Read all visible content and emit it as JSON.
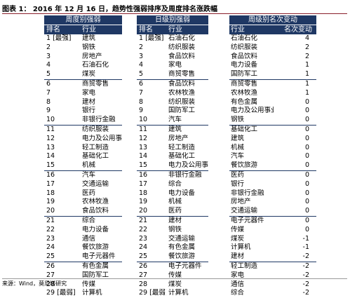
{
  "title": "图表 1： 2016 年 12 月 16 日，趋势性强弱排序及周度排名涨跌幅",
  "source": "来源：Wind，莫尼塔研究",
  "table_weekly": {
    "title": "周度别强弱",
    "headers": [
      "排名",
      "行业"
    ],
    "rows": [
      [
        "1 [最强]",
        "建筑"
      ],
      [
        "2",
        "钢铁"
      ],
      [
        "3",
        "房地产"
      ],
      [
        "4",
        "石油石化"
      ],
      [
        "5",
        "煤炭"
      ],
      [
        "6",
        "商贸零售"
      ],
      [
        "7",
        "家电"
      ],
      [
        "8",
        "建材"
      ],
      [
        "9",
        "银行"
      ],
      [
        "10",
        "非银行金融"
      ],
      [
        "11",
        "纺织服装"
      ],
      [
        "12",
        "电力及公用事业"
      ],
      [
        "13",
        "轻工制造"
      ],
      [
        "14",
        "基础化工"
      ],
      [
        "15",
        "机械"
      ],
      [
        "16",
        "汽车"
      ],
      [
        "17",
        "交通运输"
      ],
      [
        "18",
        "医药"
      ],
      [
        "19",
        "农林牧渔"
      ],
      [
        "20",
        "食品饮料"
      ],
      [
        "21",
        "综合"
      ],
      [
        "22",
        "电力设备"
      ],
      [
        "23",
        "通信"
      ],
      [
        "24",
        "餐饮旅游"
      ],
      [
        "25",
        "电子元器件"
      ],
      [
        "26",
        "有色金属"
      ],
      [
        "27",
        "国防军工"
      ],
      [
        "28",
        "传媒"
      ],
      [
        "29 [最弱]",
        "计算机"
      ]
    ]
  },
  "table_daily": {
    "title": "日级别强弱",
    "headers": [
      "排名",
      "行业"
    ],
    "rows": [
      [
        "1 [最强]",
        "石油石化"
      ],
      [
        "2",
        "纺织服装"
      ],
      [
        "3",
        "食品饮料"
      ],
      [
        "4",
        "家电"
      ],
      [
        "5",
        "商贸零售"
      ],
      [
        "6",
        "食品饮料"
      ],
      [
        "7",
        "农林牧渔"
      ],
      [
        "8",
        "纺织服装"
      ],
      [
        "9",
        "国防军工"
      ],
      [
        "10",
        "汽车"
      ],
      [
        "11",
        "建筑"
      ],
      [
        "12",
        "房地产"
      ],
      [
        "13",
        "轻工制造"
      ],
      [
        "14",
        "基础化工"
      ],
      [
        "15",
        "电力及公用事业"
      ],
      [
        "16",
        "非银行金融"
      ],
      [
        "17",
        "综合"
      ],
      [
        "18",
        "电力设备"
      ],
      [
        "19",
        "机械"
      ],
      [
        "20",
        "医药"
      ],
      [
        "21",
        "建材"
      ],
      [
        "22",
        "钢铁"
      ],
      [
        "23",
        "交通运输"
      ],
      [
        "24",
        "有色金属"
      ],
      [
        "25",
        "餐饮旅游"
      ],
      [
        "26",
        "电子元器件"
      ],
      [
        "27",
        "传媒"
      ],
      [
        "28",
        "煤炭"
      ],
      [
        "29 [最弱]",
        "计算机"
      ]
    ]
  },
  "table_change": {
    "title": "周级别名次变动",
    "headers": [
      "行业",
      "名次变动"
    ],
    "rows": [
      [
        "石油石化",
        "4"
      ],
      [
        "纺织服装",
        "2"
      ],
      [
        "食品饮料",
        "2"
      ],
      [
        "电力设备",
        "1"
      ],
      [
        "国防军工",
        "1"
      ],
      [
        "商贸零售",
        "1"
      ],
      [
        "农林牧渔",
        "1"
      ],
      [
        "有色金属",
        "0"
      ],
      [
        "电力及公用事业",
        "0"
      ],
      [
        "钢铁",
        "0"
      ],
      [
        "基础化工",
        "0"
      ],
      [
        "建筑",
        "0"
      ],
      [
        "机械",
        "0"
      ],
      [
        "汽车",
        "0"
      ],
      [
        "餐饮旅游",
        "0"
      ],
      [
        "医药",
        "0"
      ],
      [
        "银行",
        "0"
      ],
      [
        "非银行金融",
        "0"
      ],
      [
        "房地产",
        "0"
      ],
      [
        "交通运输",
        "0"
      ],
      [
        "电子元器件",
        "0"
      ],
      [
        "传媒",
        "0"
      ],
      [
        "煤炭",
        "-1"
      ],
      [
        "计算机",
        "-1"
      ],
      [
        "建材",
        "-2"
      ],
      [
        "轻工制造",
        "-2"
      ],
      [
        "家电",
        "-2"
      ],
      [
        "通信",
        "-2"
      ],
      [
        "综合",
        "-2"
      ]
    ]
  }
}
